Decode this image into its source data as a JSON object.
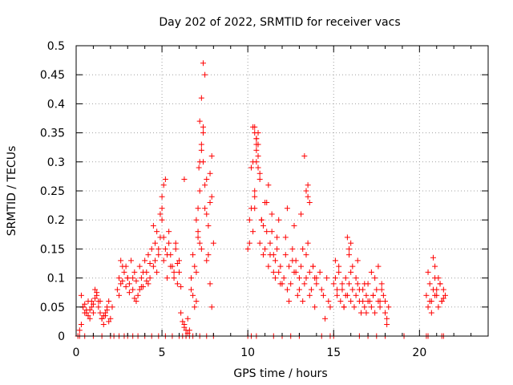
{
  "chart_data": {
    "type": "scatter",
    "title": "Day 202 of 2022, SRMTID for receiver vacs",
    "xlabel": "GPS time / hours",
    "ylabel": "SRMTID / TECUs",
    "xlim": [
      0,
      24
    ],
    "ylim": [
      0,
      0.5
    ],
    "xticks": [
      0,
      5,
      10,
      15,
      20
    ],
    "xtick_labels": [
      "0",
      "5",
      "10",
      "15",
      "20"
    ],
    "yticks": [
      0,
      0.05,
      0.1,
      0.15,
      0.2,
      0.25,
      0.3,
      0.35,
      0.4,
      0.45,
      0.5
    ],
    "ytick_labels": [
      "0",
      "0.05",
      "0.1",
      "0.15",
      "0.2",
      "0.25",
      "0.3",
      "0.35",
      "0.4",
      "0.45",
      "0.5"
    ],
    "grid": true,
    "marker": "+",
    "color": "#ff0000",
    "series": [
      {
        "name": "vacs",
        "x": [
          0.1,
          0.2,
          0.3,
          0.4,
          0.5,
          0.6,
          0.7,
          0.8,
          0.9,
          1.0,
          1.1,
          1.2,
          1.3,
          1.4,
          1.5,
          1.6,
          1.7,
          1.8,
          1.9,
          2.0,
          0.3,
          0.5,
          0.7,
          0.9,
          1.1,
          1.3,
          1.5,
          1.7,
          1.9,
          2.1,
          0.4,
          0.8,
          1.2,
          1.6,
          0.6,
          1.0,
          1.4,
          1.8,
          2.4,
          2.5,
          2.6,
          2.7,
          2.8,
          2.9,
          3.0,
          3.1,
          3.2,
          3.3,
          3.4,
          3.5,
          3.6,
          3.7,
          3.8,
          3.9,
          4.0,
          4.1,
          4.2,
          4.3,
          2.5,
          2.7,
          2.9,
          3.1,
          3.3,
          3.5,
          3.7,
          3.9,
          4.1,
          4.3,
          2.6,
          3.0,
          3.4,
          3.8,
          4.2,
          4.4,
          4.5,
          4.6,
          4.7,
          4.8,
          4.9,
          5.0,
          5.1,
          5.2,
          5.3,
          5.4,
          5.5,
          5.6,
          5.7,
          5.8,
          5.9,
          6.0,
          4.5,
          4.7,
          4.9,
          5.1,
          5.3,
          5.5,
          5.7,
          5.9,
          4.6,
          5.0,
          5.2,
          5.4,
          5.8,
          6.0,
          6.1,
          5.0,
          5.1,
          4.8,
          6.2,
          6.3,
          6.4,
          6.5,
          6.6,
          6.1,
          6.3,
          6.5,
          6.2,
          6.4,
          6.6,
          6.3,
          6.7,
          6.8,
          6.9,
          7.0,
          7.1,
          7.2,
          7.3,
          7.4,
          7.5,
          7.6,
          7.7,
          7.8,
          7.9,
          8.0,
          6.8,
          7.0,
          7.2,
          7.4,
          7.6,
          7.8,
          6.9,
          7.1,
          7.3,
          7.5,
          7.7,
          7.9,
          7.2,
          7.3,
          7.4,
          7.5,
          7.2,
          7.15,
          7.1,
          7.3,
          7.4,
          7.6,
          7.8,
          7.0,
          6.7,
          7.9,
          10.0,
          10.1,
          10.2,
          10.3,
          10.4,
          10.5,
          10.6,
          10.7,
          10.8,
          10.9,
          11.0,
          11.1,
          11.2,
          11.3,
          11.4,
          11.5,
          11.6,
          11.7,
          11.8,
          11.9,
          12.0,
          10.1,
          10.3,
          10.5,
          10.7,
          10.9,
          11.1,
          11.3,
          11.5,
          11.7,
          11.9,
          10.2,
          10.4,
          10.6,
          10.8,
          11.0,
          11.2,
          11.4,
          11.6,
          11.8,
          10.4,
          10.5,
          10.6,
          10.4,
          10.5,
          10.3,
          10.6,
          10.5,
          10.4,
          10.7,
          12.1,
          12.2,
          12.3,
          12.4,
          12.5,
          12.6,
          12.7,
          12.8,
          12.9,
          13.0,
          13.1,
          13.2,
          13.3,
          13.4,
          13.5,
          13.6,
          13.7,
          13.8,
          13.9,
          14.0,
          12.2,
          12.4,
          12.6,
          12.8,
          13.0,
          13.2,
          13.4,
          13.6,
          13.8,
          14.0,
          12.3,
          12.7,
          13.1,
          13.5,
          13.9,
          13.3,
          13.4,
          13.5,
          13.6,
          14.2,
          14.4,
          14.6,
          14.8,
          14.3,
          14.7,
          14.5,
          15.0,
          15.1,
          15.2,
          15.3,
          15.4,
          15.5,
          15.6,
          15.7,
          15.8,
          15.9,
          16.0,
          16.1,
          16.2,
          16.3,
          16.4,
          16.5,
          16.6,
          16.7,
          16.8,
          16.9,
          17.0,
          15.1,
          15.3,
          15.5,
          15.7,
          15.9,
          16.1,
          16.3,
          16.5,
          16.7,
          16.9,
          15.2,
          15.6,
          16.0,
          16.4,
          16.8,
          15.8,
          15.9,
          16.0,
          17.1,
          17.2,
          17.3,
          17.4,
          17.5,
          17.6,
          17.7,
          17.8,
          17.9,
          18.0,
          18.1,
          18.2,
          17.2,
          17.4,
          17.6,
          17.8,
          18.0,
          17.3,
          17.7,
          17.0,
          18.1,
          20.4,
          20.5,
          20.6,
          20.7,
          20.8,
          20.9,
          21.0,
          21.1,
          21.2,
          21.3,
          21.4,
          21.5,
          20.5,
          20.7,
          20.9,
          21.1,
          21.3,
          20.6,
          21.0,
          20.8,
          21.2,
          20.9,
          21.4,
          0.2,
          0.5,
          1.0,
          1.5,
          2.0,
          2.2,
          2.5,
          2.8,
          3.0,
          3.3,
          3.6,
          4.0,
          4.4,
          4.8,
          5.2,
          5.6,
          6.0,
          6.4,
          6.8,
          7.2,
          7.6,
          8.0,
          10.0,
          10.2,
          10.5,
          11.5,
          12.0,
          12.5,
          13.0,
          14.3,
          14.8,
          15.0,
          16.5,
          17.0,
          17.5,
          18.0,
          19.1,
          20.4,
          20.5,
          21.3,
          21.4
        ],
        "y": [
          0.0,
          0.01,
          0.02,
          0.05,
          0.04,
          0.045,
          0.06,
          0.03,
          0.05,
          0.04,
          0.065,
          0.07,
          0.06,
          0.04,
          0.03,
          0.02,
          0.035,
          0.045,
          0.025,
          0.03,
          0.07,
          0.055,
          0.035,
          0.06,
          0.08,
          0.05,
          0.03,
          0.04,
          0.06,
          0.05,
          0.05,
          0.045,
          0.075,
          0.035,
          0.04,
          0.055,
          0.06,
          0.05,
          0.08,
          0.1,
          0.09,
          0.12,
          0.11,
          0.085,
          0.1,
          0.09,
          0.13,
          0.08,
          0.11,
          0.095,
          0.07,
          0.12,
          0.1,
          0.085,
          0.13,
          0.11,
          0.09,
          0.1,
          0.07,
          0.095,
          0.12,
          0.075,
          0.1,
          0.06,
          0.08,
          0.11,
          0.095,
          0.125,
          0.13,
          0.1,
          0.065,
          0.085,
          0.14,
          0.15,
          0.12,
          0.16,
          0.18,
          0.14,
          0.17,
          0.2,
          0.13,
          0.15,
          0.1,
          0.16,
          0.14,
          0.12,
          0.11,
          0.15,
          0.09,
          0.13,
          0.19,
          0.11,
          0.21,
          0.17,
          0.14,
          0.12,
          0.1,
          0.125,
          0.13,
          0.22,
          0.27,
          0.18,
          0.16,
          0.11,
          0.085,
          0.24,
          0.26,
          0.15,
          0.0,
          0.02,
          0.01,
          0.03,
          0.0,
          0.04,
          0.015,
          0.005,
          0.025,
          0.0,
          0.01,
          0.27,
          0.1,
          0.14,
          0.12,
          0.2,
          0.17,
          0.25,
          0.15,
          0.3,
          0.22,
          0.13,
          0.19,
          0.09,
          0.24,
          0.16,
          0.07,
          0.11,
          0.16,
          0.35,
          0.21,
          0.28,
          0.05,
          0.18,
          0.33,
          0.26,
          0.14,
          0.31,
          0.37,
          0.41,
          0.47,
          0.45,
          0.3,
          0.29,
          0.22,
          0.32,
          0.36,
          0.27,
          0.23,
          0.06,
          0.08,
          0.05,
          0.15,
          0.2,
          0.22,
          0.18,
          0.25,
          0.3,
          0.35,
          0.16,
          0.2,
          0.14,
          0.23,
          0.18,
          0.12,
          0.16,
          0.21,
          0.14,
          0.1,
          0.15,
          0.2,
          0.12,
          0.09,
          0.16,
          0.36,
          0.34,
          0.27,
          0.19,
          0.23,
          0.14,
          0.11,
          0.17,
          0.09,
          0.29,
          0.24,
          0.33,
          0.2,
          0.15,
          0.26,
          0.18,
          0.13,
          0.11,
          0.35,
          0.33,
          0.31,
          0.36,
          0.32,
          0.3,
          0.29,
          0.34,
          0.22,
          0.28,
          0.1,
          0.14,
          0.08,
          0.12,
          0.09,
          0.15,
          0.11,
          0.13,
          0.07,
          0.1,
          0.12,
          0.06,
          0.09,
          0.14,
          0.16,
          0.11,
          0.08,
          0.12,
          0.05,
          0.1,
          0.17,
          0.06,
          0.13,
          0.11,
          0.08,
          0.15,
          0.1,
          0.07,
          0.12,
          0.09,
          0.22,
          0.19,
          0.21,
          0.24,
          0.1,
          0.31,
          0.25,
          0.26,
          0.23,
          0.11,
          0.07,
          0.1,
          0.05,
          0.08,
          0.06,
          0.03,
          0.09,
          0.1,
          0.07,
          0.12,
          0.06,
          0.08,
          0.05,
          0.1,
          0.07,
          0.09,
          0.06,
          0.08,
          0.05,
          0.07,
          0.09,
          0.06,
          0.04,
          0.08,
          0.05,
          0.07,
          0.06,
          0.13,
          0.11,
          0.09,
          0.07,
          0.15,
          0.12,
          0.1,
          0.08,
          0.06,
          0.04,
          0.08,
          0.05,
          0.11,
          0.13,
          0.09,
          0.17,
          0.14,
          0.16,
          0.06,
          0.05,
          0.07,
          0.04,
          0.08,
          0.06,
          0.05,
          0.09,
          0.07,
          0.06,
          0.03,
          0.05,
          0.11,
          0.1,
          0.12,
          0.08,
          0.04,
          0.07,
          0.06,
          0.09,
          0.02,
          0.07,
          0.05,
          0.09,
          0.06,
          0.08,
          0.1,
          0.07,
          0.05,
          0.09,
          0.06,
          0.08,
          0.07,
          0.11,
          0.04,
          0.12,
          0.1,
          0.06,
          0.06,
          0.08,
          0.135,
          0.09,
          0.07,
          0.065,
          0.0,
          0.0,
          0.0,
          0.0,
          0.0,
          0.0,
          0.0,
          0.0,
          0.0,
          0.0,
          0.0,
          0.0,
          0.0,
          0.0,
          0.0,
          0.0,
          0.0,
          0.0,
          0.0,
          0.0,
          0.0,
          0.0,
          0.0,
          0.0,
          0.0,
          0.0,
          0.0,
          0.0,
          0.0,
          0.0,
          0.0,
          0.0,
          0.0,
          0.0,
          0.0,
          0.0,
          0.0,
          0.0,
          0.0,
          0.0,
          0.0
        ]
      }
    ]
  }
}
